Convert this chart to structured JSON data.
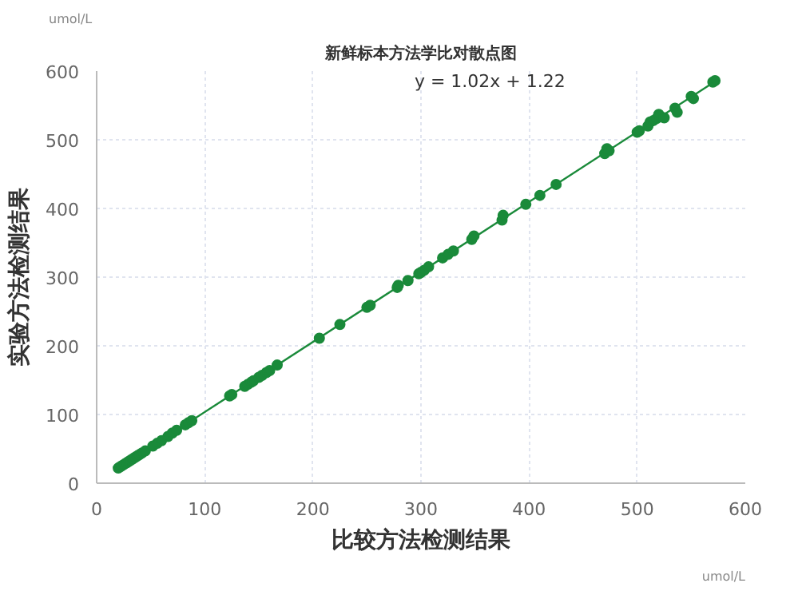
{
  "chart_data": {
    "type": "scatter",
    "title": "新鲜标本方法学比对散点图",
    "xlabel": "比较方法检测结果",
    "ylabel": "实验方法检测结果",
    "annotations": [
      "y = 1.02x + 1.22",
      "umol/L",
      "umol/L"
    ],
    "xlim": [
      0,
      600
    ],
    "ylim": [
      0,
      600
    ],
    "xticks": [
      0,
      100,
      200,
      300,
      400,
      500,
      600
    ],
    "yticks": [
      0,
      100,
      200,
      300,
      400,
      500,
      600
    ],
    "grid": true,
    "marker": "circle",
    "series": [
      {
        "type": "line",
        "marker": "none",
        "color": "#1a8a3a",
        "x": [
          20,
          572
        ],
        "values": [
          22,
          585
        ]
      },
      {
        "color": "#1a8a3a",
        "x": [
          20,
          22,
          24,
          26,
          28,
          30,
          32,
          34,
          36,
          38,
          40,
          42,
          45,
          52,
          56,
          60,
          66,
          70,
          74,
          82,
          85,
          88,
          123,
          125,
          137,
          140,
          143,
          145,
          150,
          153,
          157,
          160,
          167,
          206,
          225,
          250,
          253,
          278,
          279,
          288,
          298,
          300,
          303,
          307,
          320,
          325,
          330,
          347,
          349,
          375,
          376,
          397,
          410,
          425,
          470,
          472,
          474,
          500,
          502,
          510,
          512,
          515,
          518,
          520,
          525,
          535,
          537,
          550,
          552,
          570,
          572
        ],
        "values": [
          22,
          24,
          26,
          28,
          30,
          32,
          34,
          36,
          38,
          40,
          42,
          44,
          47,
          54,
          58,
          62,
          68,
          73,
          77,
          85,
          88,
          91,
          127,
          129,
          141,
          144,
          147,
          149,
          154,
          157,
          161,
          164,
          172,
          211,
          231,
          256,
          259,
          285,
          288,
          295,
          305,
          307,
          310,
          315,
          328,
          333,
          338,
          355,
          360,
          383,
          390,
          406,
          419,
          435,
          480,
          487,
          484,
          511,
          513,
          520,
          526,
          528,
          531,
          537,
          532,
          546,
          540,
          563,
          560,
          584,
          586
        ]
      }
    ]
  }
}
